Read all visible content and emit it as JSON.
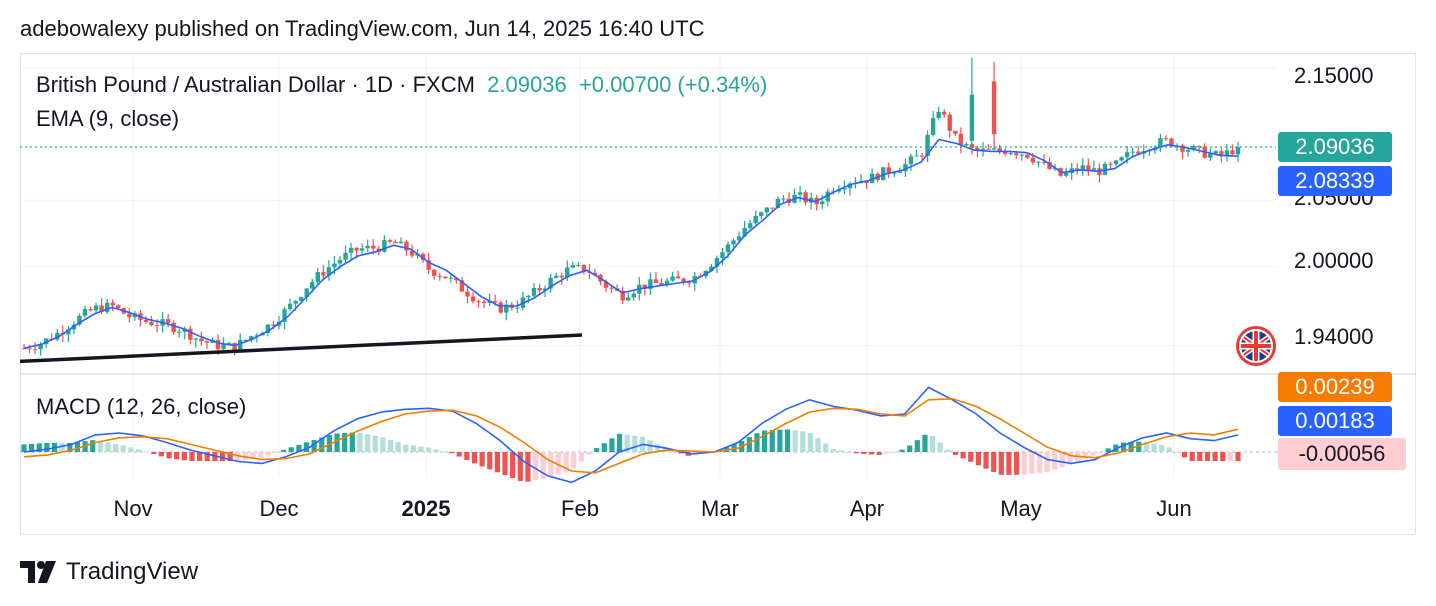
{
  "header": {
    "published": "adebowalexy published on TradingView.com, Jun 14, 2025 16:40 UTC"
  },
  "legend": {
    "symbol": "British Pound / Australian Dollar · 1D · FXCM",
    "last": "2.09036",
    "change": "+0.00700 (+0.34%)",
    "ema_label": "EMA (9, close)",
    "macd_label": "MACD (12, 26, close)"
  },
  "price_axis": {
    "ticks": [
      "2.15000",
      "2.05000",
      "2.00000",
      "1.94000"
    ],
    "badges": {
      "last": "2.09036",
      "ema": "2.08339"
    }
  },
  "macd_axis": {
    "badges": {
      "signal": "0.00239",
      "macd": "0.00183",
      "hist": "-0.00056"
    }
  },
  "time_axis": [
    "Nov",
    "Dec",
    "2025",
    "Feb",
    "Mar",
    "Apr",
    "May",
    "Jun"
  ],
  "footer": {
    "brand": "TradingView"
  },
  "colors": {
    "up": "#26a69a",
    "down": "#ef5350",
    "ema": "#2962ff",
    "signal": "#f57c00",
    "hist_up_strong": "#26a69a",
    "hist_up_weak": "#b2dfdb",
    "hist_down_strong": "#ef5350",
    "hist_down_weak": "#ffcdd2",
    "trendline": "#131722"
  },
  "chart_data": [
    {
      "type": "candlestick",
      "title": "British Pound / Australian Dollar · 1D · FXCM",
      "series": [
        {
          "name": "EMA (9, close)",
          "values": [
            1.938,
            1.941,
            1.947,
            1.956,
            1.964,
            1.969,
            1.965,
            1.96,
            1.957,
            1.953,
            1.947,
            1.942,
            1.94,
            1.945,
            1.952,
            1.962,
            1.976,
            1.99,
            2.0,
            2.008,
            2.011,
            2.016,
            2.013,
            2.003,
            1.997,
            1.987,
            1.977,
            1.97,
            1.97,
            1.976,
            1.985,
            1.993,
            1.997,
            1.989,
            1.98,
            1.983,
            1.985,
            1.987,
            1.989,
            1.996,
            2.008,
            2.024,
            2.035,
            2.047,
            2.052,
            2.049,
            2.056,
            2.062,
            2.065,
            2.07,
            2.073,
            2.079,
            2.096,
            2.093,
            2.088,
            2.087,
            2.087,
            2.086,
            2.08,
            2.071,
            2.073,
            2.072,
            2.074,
            2.083,
            2.088,
            2.092,
            2.09,
            2.087,
            2.084,
            2.0834
          ]
        }
      ],
      "ohlc_trend": [
        1.938,
        1.942,
        1.95,
        1.96,
        1.968,
        1.97,
        1.962,
        1.958,
        1.956,
        1.952,
        1.944,
        1.94,
        1.939,
        1.948,
        1.956,
        1.968,
        1.984,
        1.996,
        2.006,
        2.013,
        2.014,
        2.018,
        2.011,
        1.998,
        1.992,
        1.982,
        1.973,
        1.968,
        1.971,
        1.98,
        1.99,
        1.998,
        1.998,
        1.986,
        1.978,
        1.985,
        1.987,
        1.989,
        1.991,
        2.002,
        2.015,
        2.03,
        2.04,
        2.051,
        2.053,
        2.047,
        2.06,
        2.065,
        2.066,
        2.072,
        2.076,
        2.085,
        2.12,
        2.095,
        2.087,
        2.087,
        2.088,
        2.085,
        2.076,
        2.068,
        2.075,
        2.072,
        2.076,
        2.087,
        2.092,
        2.095,
        2.09,
        2.086,
        2.083,
        2.0904
      ],
      "last": 2.09036,
      "ylim": [
        1.92,
        2.16
      ],
      "y_ticks": [
        2.15,
        2.05,
        2.0,
        1.94
      ],
      "x_ticks": [
        "Nov",
        "Dec",
        "2025",
        "Feb",
        "Mar",
        "Apr",
        "May",
        "Jun"
      ],
      "trendline": {
        "from": 1.928,
        "to": 1.948
      }
    },
    {
      "type": "line",
      "title": "MACD (12, 26, close)",
      "series": [
        {
          "name": "MACD",
          "values": [
            0.0,
            0.0003,
            0.0008,
            0.0018,
            0.002,
            0.0017,
            0.001,
            0.0002,
            -0.0004,
            -0.001,
            -0.0012,
            -0.0005,
            0.0005,
            0.0022,
            0.0035,
            0.0042,
            0.0045,
            0.0046,
            0.0043,
            0.003,
            0.0012,
            -0.001,
            -0.0025,
            -0.0032,
            -0.002,
            0.0,
            0.0008,
            0.0004,
            -0.0002,
            0.0,
            0.001,
            0.003,
            0.0045,
            0.0055,
            0.0048,
            0.0044,
            0.0038,
            0.004,
            0.0068,
            0.0055,
            0.004,
            0.002,
            0.0005,
            -0.0008,
            -0.0012,
            -0.0008,
            0.0005,
            0.0015,
            0.002,
            0.0014,
            0.0012,
            0.0018
          ]
        },
        {
          "name": "Signal",
          "values": [
            -0.0005,
            -0.0003,
            0.0002,
            0.001,
            0.0015,
            0.0016,
            0.0014,
            0.0008,
            0.0002,
            -0.0004,
            -0.0008,
            -0.0007,
            -0.0002,
            0.001,
            0.0022,
            0.0032,
            0.004,
            0.0043,
            0.0044,
            0.0038,
            0.0026,
            0.001,
            -0.0008,
            -0.002,
            -0.0022,
            -0.0012,
            -0.0002,
            0.0002,
            0.0001,
            0.0,
            0.0004,
            0.0016,
            0.003,
            0.0042,
            0.0046,
            0.0045,
            0.004,
            0.0038,
            0.0055,
            0.0056,
            0.0048,
            0.0035,
            0.002,
            0.0005,
            -0.0004,
            -0.0006,
            -0.0001,
            0.0008,
            0.0016,
            0.002,
            0.0018,
            0.0024
          ]
        }
      ],
      "last_values": {
        "macd": 0.00183,
        "signal": 0.00239,
        "hist": -0.00056
      }
    }
  ]
}
